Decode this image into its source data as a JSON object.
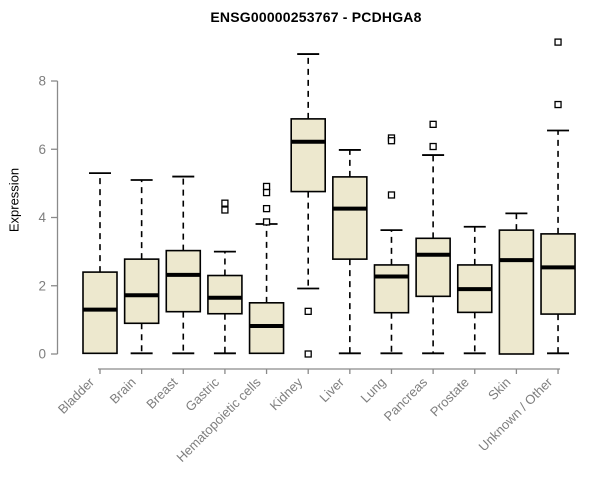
{
  "chart_data": {
    "type": "boxplot",
    "title": "ENSG00000253767 - PCDHGA8",
    "ylabel": "Expression",
    "xlabel": "",
    "ylim": [
      0,
      9.3
    ],
    "yticks": [
      0,
      2,
      4,
      6,
      8
    ],
    "grid": false,
    "legend": "none",
    "box_fill": "#EDE8CE",
    "box_stroke": "#000000",
    "axis_color": "#8A8A8A",
    "label_color": "#7E7E7E",
    "title_color": "#000000",
    "categories": [
      "Bladder",
      "Brain",
      "Breast",
      "Gastric",
      "Hematopoietic cells",
      "Kidney",
      "Liver",
      "Lung",
      "Pancreas",
      "Prostate",
      "Skin",
      "Unknown / Other"
    ],
    "series": [
      {
        "category": "Bladder",
        "whisker_low": 0.02,
        "q1": 0.02,
        "median": 1.3,
        "q3": 2.4,
        "whisker_high": 5.3,
        "outliers": []
      },
      {
        "category": "Brain",
        "whisker_low": 0.02,
        "q1": 0.9,
        "median": 1.72,
        "q3": 2.78,
        "whisker_high": 5.1,
        "outliers": []
      },
      {
        "category": "Breast",
        "whisker_low": 0.02,
        "q1": 1.24,
        "median": 2.32,
        "q3": 3.03,
        "whisker_high": 5.2,
        "outliers": []
      },
      {
        "category": "Gastric",
        "whisker_low": 0.02,
        "q1": 1.18,
        "median": 1.65,
        "q3": 2.3,
        "whisker_high": 3.0,
        "outliers": [
          4.42,
          4.22
        ]
      },
      {
        "category": "Hematopoietic cells",
        "whisker_low": 0.02,
        "q1": 0.02,
        "median": 0.82,
        "q3": 1.5,
        "whisker_high": 3.81,
        "outliers": [
          4.91,
          4.73,
          4.26,
          3.87
        ]
      },
      {
        "category": "Kidney",
        "whisker_low": 1.92,
        "q1": 4.76,
        "median": 6.22,
        "q3": 6.89,
        "whisker_high": 8.79,
        "outliers": [
          1.25,
          0.0
        ]
      },
      {
        "category": "Liver",
        "whisker_low": 0.02,
        "q1": 2.78,
        "median": 4.26,
        "q3": 5.19,
        "whisker_high": 5.98,
        "outliers": []
      },
      {
        "category": "Lung",
        "whisker_low": 0.02,
        "q1": 1.21,
        "median": 2.27,
        "q3": 2.61,
        "whisker_high": 3.63,
        "outliers": [
          6.33,
          6.25,
          4.66
        ]
      },
      {
        "category": "Pancreas",
        "whisker_low": 0.02,
        "q1": 1.69,
        "median": 2.91,
        "q3": 3.39,
        "whisker_high": 5.83,
        "outliers": [
          6.73,
          6.08
        ]
      },
      {
        "category": "Prostate",
        "whisker_low": 0.02,
        "q1": 1.22,
        "median": 1.9,
        "q3": 2.61,
        "whisker_high": 3.73,
        "outliers": []
      },
      {
        "category": "Skin",
        "whisker_low": 0.0,
        "q1": 0.0,
        "median": 2.75,
        "q3": 3.63,
        "whisker_high": 4.12,
        "outliers": []
      },
      {
        "category": "Unknown / Other",
        "whisker_low": 0.02,
        "q1": 1.17,
        "median": 2.54,
        "q3": 3.52,
        "whisker_high": 6.55,
        "outliers": [
          9.14,
          7.31
        ]
      }
    ]
  }
}
